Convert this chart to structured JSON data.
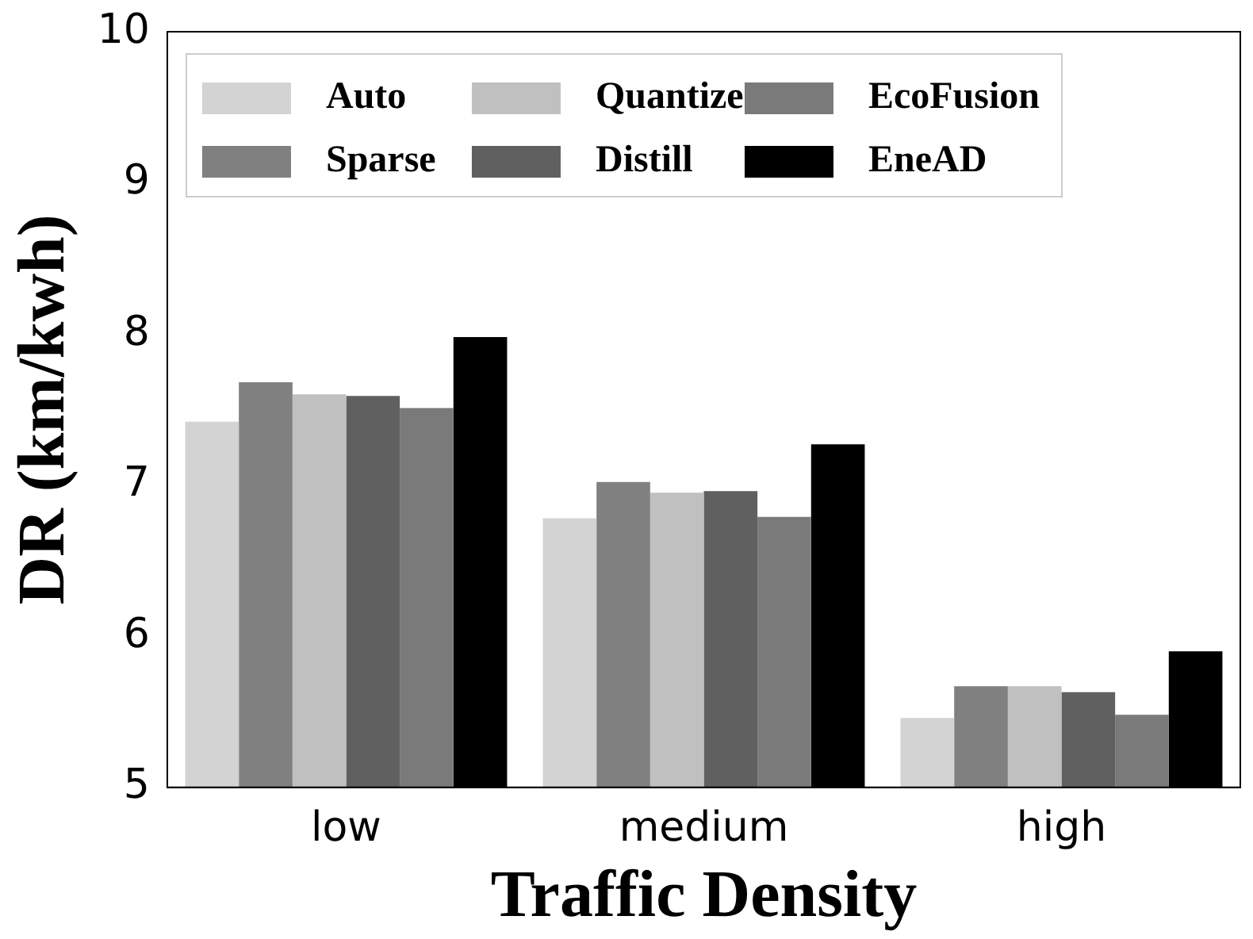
{
  "chart_data": {
    "type": "bar",
    "xlabel": "Traffic Density",
    "ylabel": "DR (km/kwh)",
    "categories": [
      "low",
      "medium",
      "high"
    ],
    "series": [
      {
        "name": "Auto",
        "color": "#d3d3d3",
        "values": [
          7.42,
          6.78,
          5.46
        ]
      },
      {
        "name": "Sparse",
        "color": "#808080",
        "values": [
          7.68,
          7.02,
          5.67
        ]
      },
      {
        "name": "Quantize",
        "color": "#c0c0c0",
        "values": [
          7.6,
          6.95,
          5.67
        ]
      },
      {
        "name": "Distill",
        "color": "#606060",
        "values": [
          7.59,
          6.96,
          5.63
        ]
      },
      {
        "name": "EcoFusion",
        "color": "#7a7a7a",
        "values": [
          7.51,
          6.79,
          5.48
        ]
      },
      {
        "name": "EneAD",
        "color": "#000000",
        "values": [
          7.98,
          7.27,
          5.9
        ]
      }
    ],
    "ylim": [
      5,
      10
    ],
    "yticks": [
      5,
      6,
      7,
      8,
      9,
      10
    ],
    "grid": false,
    "legend": "top left"
  }
}
